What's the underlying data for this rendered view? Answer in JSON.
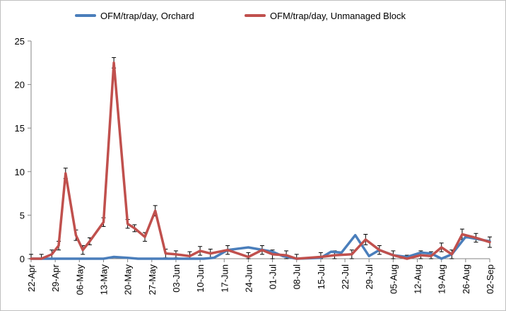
{
  "chart_data": {
    "type": "line",
    "title": "",
    "xlabel": "",
    "ylabel": "",
    "ylim": [
      0,
      25
    ],
    "yticks": [
      0,
      5,
      10,
      15,
      20,
      25
    ],
    "grid": false,
    "legend_position": "top",
    "xtick_labels": [
      "22-Apr",
      "29-Apr",
      "06-May",
      "13-May",
      "20-May",
      "27-May",
      "03-Jun",
      "10-Jun",
      "17-Jun",
      "24-Jun",
      "01-Jul",
      "08-Jul",
      "15-Jul",
      "22-Jul",
      "29-Jul",
      "05-Aug",
      "12-Aug",
      "19-Aug",
      "26-Aug",
      "02-Sep"
    ],
    "series": [
      {
        "name": "OFM/trap/day, Orchard",
        "color": "#4a7ebb",
        "points": [
          {
            "date": "2019-04-22",
            "y": 0.0
          },
          {
            "date": "2019-04-25",
            "y": 0.0
          },
          {
            "date": "2019-04-28",
            "y": 0.0
          },
          {
            "date": "2019-05-01",
            "y": 0.0
          },
          {
            "date": "2019-05-04",
            "y": 0.0
          },
          {
            "date": "2019-05-07",
            "y": 0.0
          },
          {
            "date": "2019-05-10",
            "y": 0.0
          },
          {
            "date": "2019-05-13",
            "y": 0.0
          },
          {
            "date": "2019-05-16",
            "y": 0.2
          },
          {
            "date": "2019-05-20",
            "y": 0.1
          },
          {
            "date": "2019-05-23",
            "y": 0.0
          },
          {
            "date": "2019-05-27",
            "y": 0.0
          },
          {
            "date": "2019-05-31",
            "y": 0.0
          },
          {
            "date": "2019-06-03",
            "y": 0.0
          },
          {
            "date": "2019-06-07",
            "y": 0.0
          },
          {
            "date": "2019-06-11",
            "y": 0.0
          },
          {
            "date": "2019-06-14",
            "y": 0.1
          },
          {
            "date": "2019-06-18",
            "y": 1.0
          },
          {
            "date": "2019-06-24",
            "y": 1.3
          },
          {
            "date": "2019-07-01",
            "y": 0.8
          },
          {
            "date": "2019-07-04",
            "y": 0.3
          },
          {
            "date": "2019-07-08",
            "y": 0.0
          },
          {
            "date": "2019-07-15",
            "y": 0.1
          },
          {
            "date": "2019-07-18",
            "y": 0.8
          },
          {
            "date": "2019-07-21",
            "y": 0.7
          },
          {
            "date": "2019-07-25",
            "y": 2.7
          },
          {
            "date": "2019-07-29",
            "y": 0.3
          },
          {
            "date": "2019-08-01",
            "y": 1.0
          },
          {
            "date": "2019-08-05",
            "y": 0.4
          },
          {
            "date": "2019-08-09",
            "y": 0.2
          },
          {
            "date": "2019-08-13",
            "y": 0.7
          },
          {
            "date": "2019-08-16",
            "y": 0.6
          },
          {
            "date": "2019-08-19",
            "y": 0.0
          },
          {
            "date": "2019-08-22",
            "y": 0.5
          },
          {
            "date": "2019-08-26",
            "y": 2.5
          },
          {
            "date": "2019-09-02",
            "y": 2.0
          }
        ]
      },
      {
        "name": "OFM/trap/day, Unmanaged Block",
        "color": "#c0504d",
        "points": [
          {
            "date": "2019-04-22",
            "y": 0.0,
            "err": 0.5
          },
          {
            "date": "2019-04-25",
            "y": 0.0,
            "err": 0.5
          },
          {
            "date": "2019-04-28",
            "y": 0.5,
            "err": 0.5
          },
          {
            "date": "2019-04-30",
            "y": 1.5,
            "err": 0.5
          },
          {
            "date": "2019-05-02",
            "y": 9.8,
            "err": 0.6
          },
          {
            "date": "2019-05-05",
            "y": 2.7,
            "err": 0.6
          },
          {
            "date": "2019-05-07",
            "y": 1.0,
            "err": 0.5
          },
          {
            "date": "2019-05-09",
            "y": 2.0,
            "err": 0.4
          },
          {
            "date": "2019-05-13",
            "y": 4.2,
            "err": 0.5
          },
          {
            "date": "2019-05-16",
            "y": 22.5,
            "err": 0.6
          },
          {
            "date": "2019-05-20",
            "y": 4.0,
            "err": 0.5
          },
          {
            "date": "2019-05-22",
            "y": 3.5,
            "err": 0.4
          },
          {
            "date": "2019-05-25",
            "y": 2.5,
            "err": 0.5
          },
          {
            "date": "2019-05-28",
            "y": 5.5,
            "err": 0.6
          },
          {
            "date": "2019-05-31",
            "y": 0.6,
            "err": 0.5
          },
          {
            "date": "2019-06-03",
            "y": 0.5,
            "err": 0.4
          },
          {
            "date": "2019-06-07",
            "y": 0.3,
            "err": 0.5
          },
          {
            "date": "2019-06-10",
            "y": 0.9,
            "err": 0.5
          },
          {
            "date": "2019-06-13",
            "y": 0.6,
            "err": 0.5
          },
          {
            "date": "2019-06-18",
            "y": 1.0,
            "err": 0.5
          },
          {
            "date": "2019-06-24",
            "y": 0.2,
            "err": 0.5
          },
          {
            "date": "2019-06-28",
            "y": 1.0,
            "err": 0.5
          },
          {
            "date": "2019-07-01",
            "y": 0.5,
            "err": 0.5
          },
          {
            "date": "2019-07-05",
            "y": 0.4,
            "err": 0.5
          },
          {
            "date": "2019-07-08",
            "y": 0.0,
            "err": 0.5
          },
          {
            "date": "2019-07-15",
            "y": 0.2,
            "err": 0.5
          },
          {
            "date": "2019-07-19",
            "y": 0.4,
            "err": 0.5
          },
          {
            "date": "2019-07-24",
            "y": 0.5,
            "err": 0.5
          },
          {
            "date": "2019-07-28",
            "y": 2.2,
            "err": 0.6
          },
          {
            "date": "2019-08-01",
            "y": 1.0,
            "err": 0.5
          },
          {
            "date": "2019-08-05",
            "y": 0.4,
            "err": 0.5
          },
          {
            "date": "2019-08-09",
            "y": 0.0,
            "err": 0.4
          },
          {
            "date": "2019-08-13",
            "y": 0.4,
            "err": 0.5
          },
          {
            "date": "2019-08-16",
            "y": 0.3,
            "err": 0.5
          },
          {
            "date": "2019-08-19",
            "y": 1.3,
            "err": 0.5
          },
          {
            "date": "2019-08-22",
            "y": 0.5,
            "err": 0.5
          },
          {
            "date": "2019-08-25",
            "y": 2.8,
            "err": 0.6
          },
          {
            "date": "2019-08-29",
            "y": 2.4,
            "err": 0.5
          },
          {
            "date": "2019-09-02",
            "y": 1.9,
            "err": 0.6
          }
        ]
      }
    ]
  }
}
